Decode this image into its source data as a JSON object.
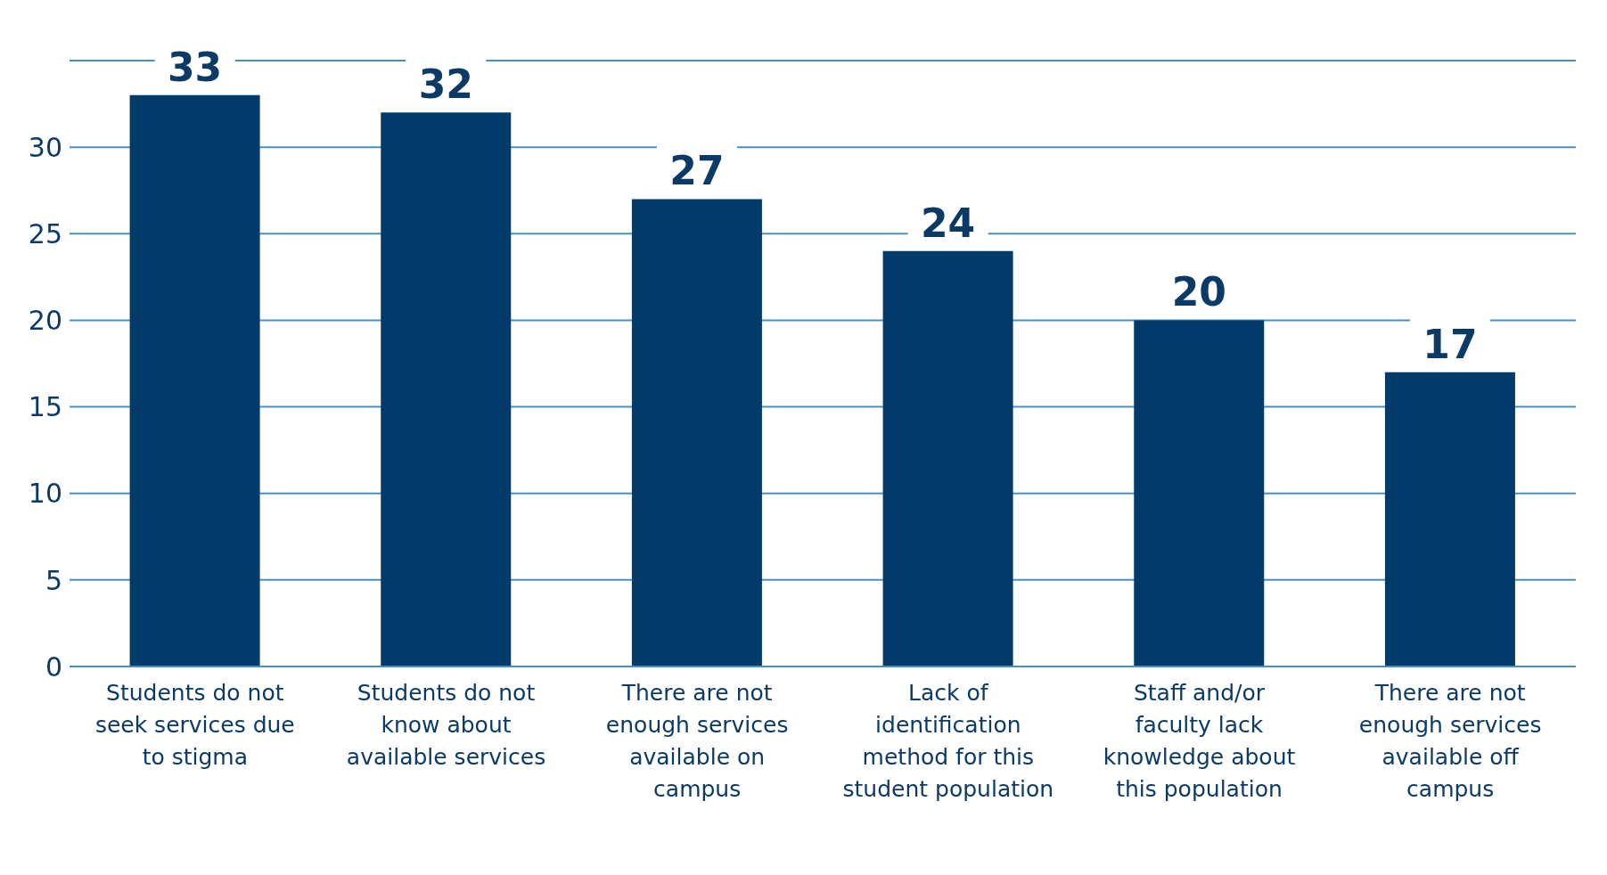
{
  "chart_data": {
    "type": "bar",
    "categories": [
      "Students do not seek services due to stigma",
      "Students do not know about available services",
      "There are not enough services available on campus",
      "Lack of identification method for this student population",
      "Staff and/or faculty lack knowledge about this population",
      "There are not enough services available off campus"
    ],
    "values": [
      33,
      32,
      27,
      24,
      20,
      17
    ],
    "color": "#023b69",
    "ylim": [
      0,
      35
    ],
    "yticks": [
      0,
      5,
      10,
      15,
      20,
      25,
      30
    ],
    "grid": "y",
    "data_labels": true
  }
}
